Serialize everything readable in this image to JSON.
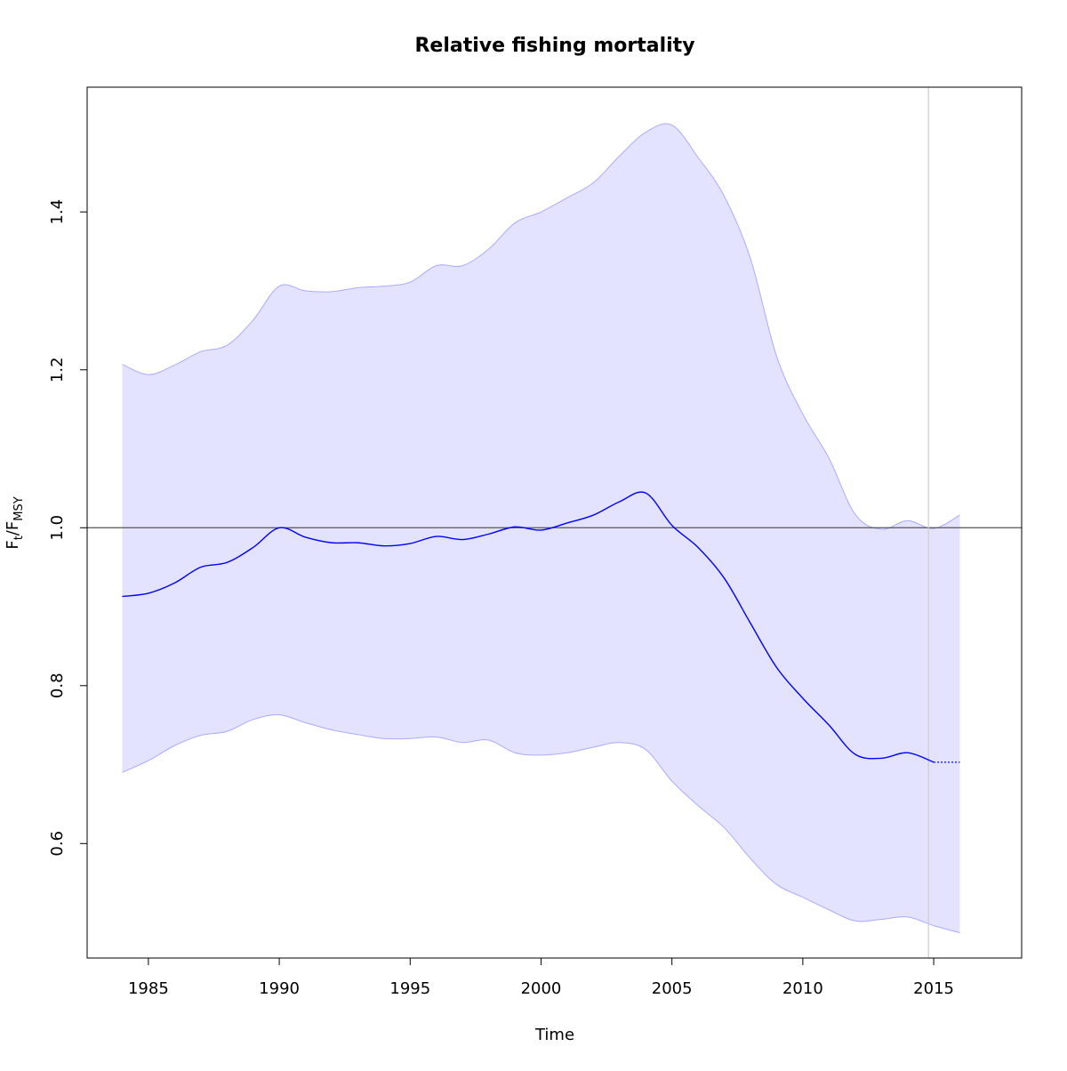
{
  "chart_data": {
    "type": "line",
    "title": "Relative fishing mortality",
    "xlabel": "Time",
    "ylabel": {
      "main": "F",
      "sub1": "t",
      "slash": "/F",
      "sub2": "MSY"
    },
    "xlim": [
      1982.66,
      2018.36
    ],
    "ylim": [
      0.455,
      1.558
    ],
    "xticks": [
      1985,
      1990,
      1995,
      2000,
      2005,
      2010,
      2015
    ],
    "xtick_labels": [
      "1985",
      "1990",
      "1995",
      "2000",
      "2005",
      "2010",
      "2015"
    ],
    "yticks": [
      0.6,
      0.8,
      1.0,
      1.2,
      1.4
    ],
    "ytick_labels": [
      "0.6",
      "0.8",
      "1.0",
      "1.2",
      "1.4"
    ],
    "grid": false,
    "reference_hline": 1.0,
    "reference_vline": 2014.8,
    "x": [
      1984,
      1985,
      1986,
      1987,
      1988,
      1989,
      1990,
      1991,
      1992,
      1993,
      1994,
      1995,
      1996,
      1997,
      1998,
      1999,
      2000,
      2001,
      2002,
      2003,
      2004,
      2005,
      2006,
      2007,
      2008,
      2009,
      2010,
      2011,
      2012,
      2013,
      2014,
      2015
    ],
    "series": [
      {
        "name": "F/Fmsy estimate",
        "color": "#0000ff",
        "values": [
          0.913,
          0.917,
          0.93,
          0.95,
          0.956,
          0.975,
          1.0,
          0.988,
          0.981,
          0.981,
          0.977,
          0.98,
          0.989,
          0.985,
          0.992,
          1.001,
          0.997,
          1.006,
          1.016,
          1.033,
          1.044,
          1.003,
          0.975,
          0.936,
          0.879,
          0.823,
          0.784,
          0.75,
          0.713,
          0.708,
          0.715,
          0.703
        ]
      },
      {
        "name": "upper CI",
        "values": [
          1.207,
          1.194,
          1.206,
          1.223,
          1.231,
          1.263,
          1.306,
          1.3,
          1.299,
          1.304,
          1.306,
          1.311,
          1.332,
          1.332,
          1.353,
          1.386,
          1.4,
          1.418,
          1.437,
          1.471,
          1.501,
          1.51,
          1.469,
          1.42,
          1.341,
          1.217,
          1.144,
          1.088,
          1.017,
          0.998,
          1.009,
          0.999
        ]
      },
      {
        "name": "lower CI",
        "values": [
          0.69,
          0.705,
          0.724,
          0.737,
          0.742,
          0.757,
          0.763,
          0.753,
          0.744,
          0.738,
          0.733,
          0.733,
          0.735,
          0.728,
          0.731,
          0.715,
          0.712,
          0.715,
          0.722,
          0.728,
          0.719,
          0.679,
          0.648,
          0.62,
          0.581,
          0.548,
          0.532,
          0.516,
          0.502,
          0.504,
          0.507,
          0.496
        ]
      }
    ],
    "forecast": {
      "x": [
        2015,
        2016
      ],
      "values": [
        0.703,
        0.703
      ],
      "upper": [
        0.999,
        1.016
      ],
      "lower": [
        0.496,
        0.487
      ],
      "style": "dotted"
    },
    "colors": {
      "band_fill": "#e3e3ff",
      "band_edge": "#aaaaff",
      "line": "#0000ff",
      "hline": "#555555",
      "vline": "#cccccc"
    }
  }
}
